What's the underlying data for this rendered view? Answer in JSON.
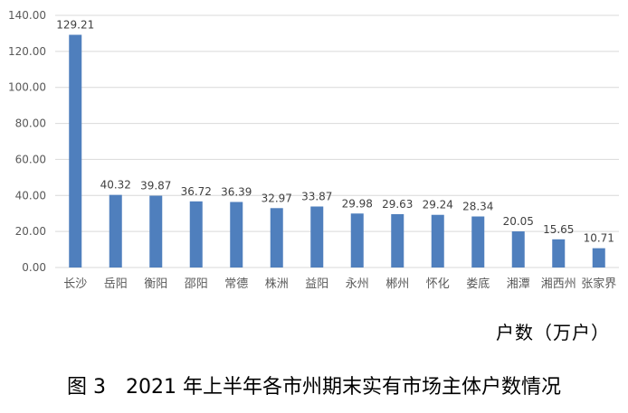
{
  "chart_data": {
    "type": "bar",
    "categories": [
      "长沙",
      "岳阳",
      "衡阳",
      "邵阳",
      "常德",
      "株洲",
      "益阳",
      "永州",
      "郴州",
      "怀化",
      "娄底",
      "湘潭",
      "湘西州",
      "张家界"
    ],
    "values": [
      129.21,
      40.32,
      39.87,
      36.72,
      36.39,
      32.97,
      33.87,
      29.98,
      29.63,
      29.24,
      28.34,
      20.05,
      15.65,
      10.71
    ],
    "data_labels": [
      "129.21",
      "40.32",
      "39.87",
      "36.72",
      "36.39",
      "32.97",
      "33.87",
      "29.98",
      "29.63",
      "29.24",
      "28.34",
      "20.05",
      "15.65",
      "10.71"
    ],
    "y_ticks": [
      0,
      20,
      40,
      60,
      80,
      100,
      120,
      140
    ],
    "y_tick_labels": [
      "0.00",
      "20.00",
      "40.00",
      "60.00",
      "80.00",
      "100.00",
      "120.00",
      "140.00"
    ],
    "ylim": [
      0,
      140
    ],
    "ylabel": "户数（万户）",
    "grid": true,
    "bar_color": "#4f7fbd",
    "grid_color": "#d9d9d9"
  },
  "caption": "图 3　2021 年上半年各市州期末实有市场主体户数情况"
}
